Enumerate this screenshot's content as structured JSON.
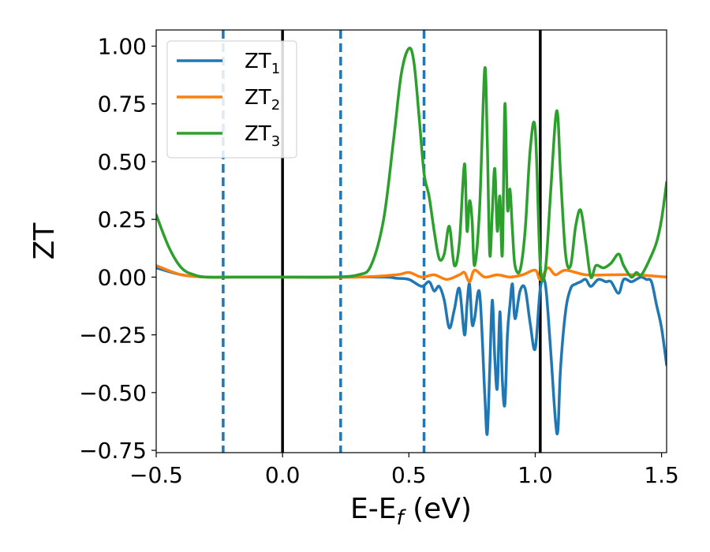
{
  "chart_data": {
    "type": "line",
    "xlabel": "E-E",
    "xlabel_sub": "f",
    "xlabel_unit": " (eV)",
    "ylabel": "ZT",
    "xlim": [
      -0.5,
      1.52
    ],
    "ylim": [
      -0.76,
      1.07
    ],
    "xticks": [
      -0.5,
      0.0,
      0.5,
      1.0,
      1.5
    ],
    "xtick_labels": [
      "−0.5",
      "0.0",
      "0.5",
      "1.0",
      "1.5"
    ],
    "yticks": [
      -0.75,
      -0.5,
      -0.25,
      0.0,
      0.25,
      0.5,
      0.75,
      1.0
    ],
    "ytick_labels": [
      "−0.75",
      "−0.50",
      "−0.25",
      "0.00",
      "0.25",
      "0.50",
      "0.75",
      "1.00"
    ],
    "grid": false,
    "legend_position": "top-left",
    "vlines_solid": [
      0.0,
      1.02
    ],
    "vlines_dashed": [
      -0.235,
      0.23,
      0.56
    ],
    "series": [
      {
        "name": "ZT",
        "sub": "1",
        "color": "#1f77b4",
        "x": [
          -0.5,
          -0.4,
          -0.3,
          -0.2,
          0.0,
          0.2,
          0.4,
          0.45,
          0.5,
          0.55,
          0.58,
          0.6,
          0.62,
          0.64,
          0.66,
          0.68,
          0.7,
          0.72,
          0.73,
          0.74,
          0.75,
          0.76,
          0.78,
          0.8,
          0.81,
          0.82,
          0.83,
          0.84,
          0.85,
          0.86,
          0.87,
          0.88,
          0.89,
          0.9,
          0.91,
          0.92,
          0.94,
          0.96,
          0.98,
          1.0,
          1.02,
          1.04,
          1.06,
          1.08,
          1.09,
          1.1,
          1.12,
          1.14,
          1.16,
          1.18,
          1.2,
          1.22,
          1.25,
          1.28,
          1.3,
          1.33,
          1.35,
          1.38,
          1.4,
          1.42,
          1.44,
          1.46,
          1.48,
          1.5,
          1.52
        ],
        "y": [
          0.04,
          0.01,
          0.0,
          0.0,
          0.0,
          0.0,
          0.0,
          -0.005,
          -0.01,
          -0.04,
          -0.02,
          -0.06,
          -0.04,
          -0.1,
          -0.22,
          -0.14,
          -0.05,
          -0.25,
          -0.12,
          -0.03,
          -0.2,
          -0.18,
          -0.07,
          -0.5,
          -0.68,
          -0.4,
          -0.1,
          -0.35,
          -0.48,
          -0.15,
          -0.45,
          -0.55,
          -0.25,
          -0.12,
          -0.03,
          -0.18,
          -0.06,
          -0.05,
          -0.2,
          -0.31,
          -0.05,
          -0.03,
          -0.3,
          -0.62,
          -0.66,
          -0.4,
          -0.15,
          -0.05,
          -0.03,
          -0.02,
          -0.01,
          -0.04,
          -0.01,
          -0.02,
          -0.02,
          -0.07,
          -0.01,
          -0.02,
          -0.01,
          0.0,
          -0.01,
          -0.02,
          -0.12,
          -0.22,
          -0.38
        ]
      },
      {
        "name": "ZT",
        "sub": "2",
        "color": "#ff7f0e",
        "x": [
          -0.5,
          -0.4,
          -0.3,
          -0.2,
          0.0,
          0.3,
          0.45,
          0.5,
          0.55,
          0.6,
          0.65,
          0.7,
          0.72,
          0.74,
          0.76,
          0.8,
          0.85,
          0.9,
          0.95,
          1.0,
          1.02,
          1.05,
          1.08,
          1.12,
          1.2,
          1.3,
          1.4,
          1.52
        ],
        "y": [
          0.05,
          0.01,
          0.0,
          0.0,
          0.0,
          0.0,
          0.01,
          0.02,
          0.0,
          0.01,
          -0.01,
          0.01,
          0.02,
          -0.02,
          0.03,
          0.0,
          0.01,
          0.0,
          0.01,
          0.03,
          -0.01,
          0.04,
          0.01,
          0.03,
          0.01,
          0.01,
          0.01,
          0.0
        ]
      },
      {
        "name": "ZT",
        "sub": "3",
        "color": "#2ca02c",
        "x": [
          -0.5,
          -0.45,
          -0.4,
          -0.35,
          -0.3,
          -0.2,
          0.0,
          0.2,
          0.3,
          0.35,
          0.4,
          0.44,
          0.47,
          0.5,
          0.52,
          0.54,
          0.56,
          0.58,
          0.6,
          0.62,
          0.64,
          0.66,
          0.68,
          0.7,
          0.72,
          0.73,
          0.74,
          0.75,
          0.76,
          0.78,
          0.8,
          0.81,
          0.82,
          0.83,
          0.84,
          0.85,
          0.86,
          0.87,
          0.88,
          0.89,
          0.9,
          0.91,
          0.92,
          0.94,
          0.96,
          0.98,
          1.0,
          1.02,
          1.04,
          1.06,
          1.08,
          1.09,
          1.1,
          1.12,
          1.14,
          1.16,
          1.18,
          1.2,
          1.22,
          1.24,
          1.27,
          1.3,
          1.33,
          1.35,
          1.38,
          1.4,
          1.42,
          1.45,
          1.48,
          1.5,
          1.52
        ],
        "y": [
          0.27,
          0.13,
          0.04,
          0.01,
          0.0,
          0.0,
          0.0,
          0.0,
          0.01,
          0.05,
          0.25,
          0.6,
          0.88,
          0.99,
          0.93,
          0.7,
          0.45,
          0.35,
          0.2,
          0.08,
          0.1,
          0.22,
          0.05,
          0.15,
          0.49,
          0.2,
          0.33,
          0.25,
          0.05,
          0.3,
          0.9,
          0.6,
          0.1,
          0.28,
          0.47,
          0.2,
          0.35,
          0.1,
          0.75,
          0.3,
          0.38,
          0.2,
          0.05,
          0.03,
          0.2,
          0.55,
          0.64,
          0.05,
          0.03,
          0.35,
          0.68,
          0.69,
          0.45,
          0.1,
          0.05,
          0.22,
          0.29,
          0.15,
          0.0,
          0.05,
          0.04,
          0.06,
          0.1,
          0.05,
          0.0,
          0.02,
          0.01,
          0.07,
          0.15,
          0.25,
          0.41
        ]
      }
    ]
  }
}
